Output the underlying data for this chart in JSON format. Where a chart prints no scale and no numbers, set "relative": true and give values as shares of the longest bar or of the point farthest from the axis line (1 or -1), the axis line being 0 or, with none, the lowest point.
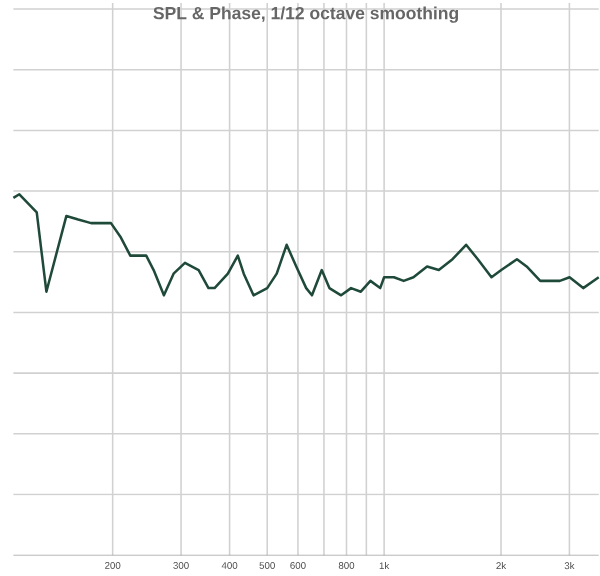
{
  "chart_data": {
    "type": "line",
    "title": "SPL & Phase, 1/12 octave smoothing",
    "relative": true,
    "log": "x",
    "grid": true,
    "marker": "none",
    "line_style": "solid",
    "xlim": [
      111,
      3570
    ],
    "xticks": [
      200,
      300,
      400,
      500,
      600,
      {
        "value": 700,
        "label": null
      },
      800,
      {
        "value": 900,
        "label": null
      },
      {
        "value": 1000,
        "label": "1k"
      },
      {
        "value": 2000,
        "label": "2k"
      },
      {
        "value": 3000,
        "label": "3k"
      }
    ],
    "series": [
      {
        "color": "#1f4a3a",
        "x": [
          111,
          115,
          127.5,
          135,
          152,
          163,
          176,
          187,
          198,
          210,
          222,
          244,
          255,
          271,
          287,
          307,
          333,
          353,
          366,
          396,
          420,
          435,
          461,
          500,
          529,
          561,
          594,
          630,
          652,
          691,
          723,
          775,
          822,
          871,
          922,
          977,
          1000,
          1060,
          1123,
          1190,
          1290,
          1383,
          1500,
          1626,
          1743,
          1890,
          2003,
          2198,
          2328,
          2524,
          2674,
          2834,
          3003,
          3256,
          3570
        ],
        "values": [
          0.99,
          1.0,
          0.95,
          0.73,
          0.94,
          0.93,
          0.92,
          0.92,
          0.92,
          0.88,
          0.83,
          0.83,
          0.79,
          0.72,
          0.78,
          0.81,
          0.79,
          0.74,
          0.74,
          0.78,
          0.83,
          0.78,
          0.72,
          0.74,
          0.78,
          0.86,
          0.8,
          0.74,
          0.72,
          0.79,
          0.74,
          0.72,
          0.74,
          0.73,
          0.76,
          0.74,
          0.77,
          0.77,
          0.76,
          0.77,
          0.8,
          0.79,
          0.82,
          0.86,
          0.82,
          0.77,
          0.79,
          0.82,
          0.8,
          0.76,
          0.76,
          0.76,
          0.77,
          0.74,
          0.77
        ]
      }
    ]
  }
}
